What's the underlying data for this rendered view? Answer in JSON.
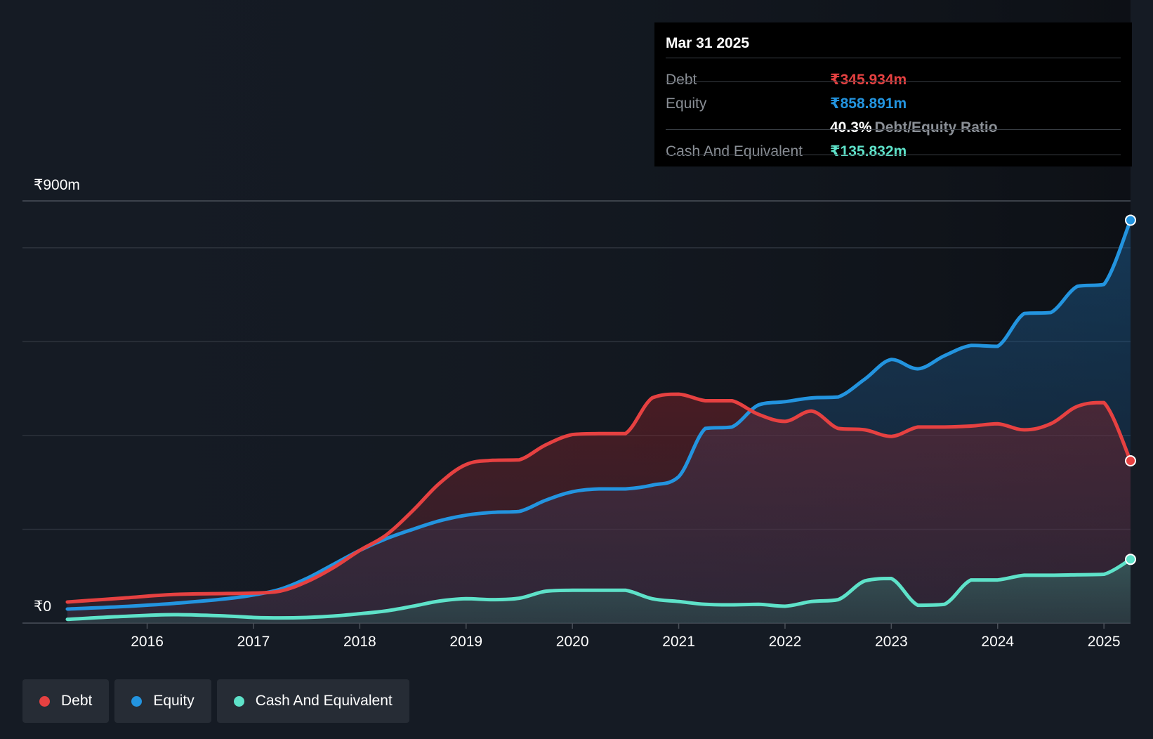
{
  "chart_data": {
    "type": "area",
    "title": "",
    "y_max_label": "₹900m",
    "y_min_label": "₹0",
    "ylim": [
      0,
      900
    ],
    "x_ticks": [
      "2016",
      "2017",
      "2018",
      "2019",
      "2020",
      "2021",
      "2022",
      "2023",
      "2024",
      "2025"
    ],
    "x_tick_values": [
      2016,
      2017,
      2018,
      2019,
      2020,
      2021,
      2022,
      2023,
      2024,
      2025
    ],
    "xlim": [
      2015.25,
      2025.25
    ],
    "series": [
      {
        "name": "Equity",
        "color": "#2394df",
        "x": [
          2015.25,
          2015.75,
          2016.25,
          2016.75,
          2017.0,
          2017.25,
          2017.5,
          2017.75,
          2018.0,
          2018.25,
          2018.5,
          2018.75,
          2019.0,
          2019.25,
          2019.5,
          2019.75,
          2020.0,
          2020.25,
          2020.5,
          2020.75,
          2021.0,
          2021.25,
          2021.5,
          2021.75,
          2022.0,
          2022.25,
          2022.5,
          2022.75,
          2023.0,
          2023.25,
          2023.5,
          2023.75,
          2024.0,
          2024.25,
          2024.5,
          2024.75,
          2025.0,
          2025.25
        ],
        "values": [
          30,
          35,
          42,
          52,
          60,
          72,
          95,
          125,
          155,
          180,
          200,
          218,
          230,
          236,
          238,
          262,
          280,
          286,
          286,
          294,
          312,
          415,
          418,
          465,
          472,
          480,
          482,
          520,
          562,
          542,
          570,
          592,
          590,
          660,
          662,
          718,
          722,
          858.891
        ]
      },
      {
        "name": "Debt",
        "color": "#e64141",
        "x": [
          2015.25,
          2015.75,
          2016.25,
          2016.75,
          2017.0,
          2017.25,
          2017.5,
          2017.75,
          2018.0,
          2018.25,
          2018.5,
          2018.75,
          2019.0,
          2019.25,
          2019.5,
          2019.75,
          2020.0,
          2020.25,
          2020.5,
          2020.75,
          2021.0,
          2021.25,
          2021.5,
          2021.75,
          2022.0,
          2022.25,
          2022.5,
          2022.75,
          2023.0,
          2023.25,
          2023.5,
          2023.75,
          2024.0,
          2024.25,
          2024.5,
          2024.75,
          2025.0,
          2025.25
        ],
        "values": [
          45,
          53,
          61,
          63,
          64,
          68,
          88,
          118,
          155,
          188,
          240,
          298,
          338,
          347,
          348,
          380,
          402,
          404,
          404,
          480,
          488,
          474,
          474,
          445,
          430,
          452,
          415,
          412,
          398,
          418,
          418,
          420,
          425,
          412,
          425,
          462,
          470,
          345.934
        ]
      },
      {
        "name": "Cash And Equivalent",
        "color": "#5ee2c9",
        "x": [
          2015.25,
          2015.75,
          2016.25,
          2016.75,
          2017.0,
          2017.25,
          2017.5,
          2017.75,
          2018.0,
          2018.25,
          2018.5,
          2018.75,
          2019.0,
          2019.25,
          2019.5,
          2019.75,
          2020.0,
          2020.25,
          2020.5,
          2020.75,
          2021.0,
          2021.25,
          2021.5,
          2021.75,
          2022.0,
          2022.25,
          2022.5,
          2022.75,
          2023.0,
          2023.25,
          2023.5,
          2023.75,
          2024.0,
          2024.25,
          2024.5,
          2024.75,
          2025.0,
          2025.25
        ],
        "values": [
          8,
          14,
          18,
          15,
          12,
          11,
          12,
          15,
          20,
          26,
          36,
          47,
          52,
          50,
          53,
          68,
          70,
          70,
          70,
          52,
          46,
          40,
          39,
          40,
          36,
          46,
          50,
          90,
          95,
          38,
          40,
          92,
          92,
          102,
          102,
          103,
          104,
          135.832
        ]
      }
    ]
  },
  "tooltip": {
    "date": "Mar 31 2025",
    "debt_label": "Debt",
    "debt_value": "₹345.934m",
    "equity_label": "Equity",
    "equity_value": "₹858.891m",
    "ratio_value": "40.3%",
    "ratio_label": "Debt/Equity Ratio",
    "cash_label": "Cash And Equivalent",
    "cash_value": "₹135.832m",
    "colors": {
      "debt": "#e64141",
      "equity": "#2394df",
      "cash": "#5ee2c9"
    }
  },
  "legend": {
    "items": [
      {
        "label": "Debt",
        "color": "#e64141"
      },
      {
        "label": "Equity",
        "color": "#2394df"
      },
      {
        "label": "Cash And Equivalent",
        "color": "#5ee2c9"
      }
    ]
  }
}
